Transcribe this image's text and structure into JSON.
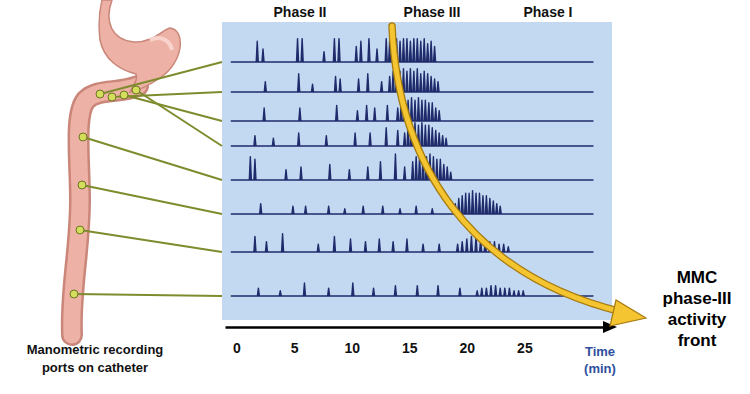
{
  "chart_data": {
    "type": "line",
    "annotations": {
      "phases": [
        "Phase II",
        "Phase III",
        "Phase I"
      ],
      "front": [
        "MMC",
        "phase-III",
        "activity",
        "front"
      ],
      "ports": [
        "Manometric recording",
        "ports on catheter"
      ]
    },
    "xlabel": [
      "Time",
      "(min)"
    ],
    "xlim": [
      -1,
      32
    ],
    "xticks": [
      0,
      5,
      10,
      15,
      20,
      25
    ],
    "ylim": [
      0,
      1
    ],
    "tick_labels": "x",
    "series": [
      {
        "color": "#1f2b6b",
        "x": [
          1.8,
          2.3,
          5.3,
          5.7,
          7.6,
          8.5,
          8.9,
          10.4,
          10.8,
          11.5,
          12.2,
          13.0,
          13.3,
          13.6,
          13.9,
          14.2,
          14.5,
          14.8,
          15.1,
          15.4,
          15.7,
          16.0,
          16.3,
          16.6,
          16.9,
          17.2
        ],
        "values": [
          0.8,
          0.5,
          0.9,
          0.9,
          0.4,
          0.9,
          0.9,
          0.6,
          0.8,
          0.9,
          0.5,
          0.9,
          0.8,
          0.9,
          0.9,
          0.8,
          0.9,
          0.9,
          0.8,
          0.9,
          0.9,
          0.8,
          0.9,
          0.7,
          0.8,
          0.6
        ]
      },
      {
        "color": "#1f2b6b",
        "x": [
          2.5,
          5.4,
          6.6,
          8.6,
          9.0,
          10.6,
          11.4,
          12.6,
          13.3,
          13.6,
          13.9,
          14.2,
          14.5,
          14.8,
          15.1,
          15.4,
          15.7,
          16.0,
          16.3,
          16.6,
          16.9,
          17.2,
          17.5
        ],
        "values": [
          0.4,
          0.7,
          0.3,
          0.6,
          0.5,
          0.5,
          0.7,
          0.4,
          0.6,
          0.8,
          0.7,
          0.8,
          0.9,
          0.8,
          0.9,
          0.8,
          0.9,
          0.7,
          0.8,
          0.7,
          0.6,
          0.5,
          0.4
        ]
      },
      {
        "color": "#1f2b6b",
        "x": [
          2.4,
          5.5,
          8.7,
          10.5,
          11.3,
          12.0,
          13.1,
          14.0,
          14.3,
          14.6,
          14.9,
          15.2,
          15.5,
          15.8,
          16.1,
          16.4,
          16.7,
          17.0,
          17.3,
          17.6
        ],
        "values": [
          0.5,
          0.5,
          0.6,
          0.4,
          0.6,
          0.5,
          0.6,
          0.5,
          0.7,
          0.8,
          0.8,
          0.9,
          0.8,
          0.9,
          0.8,
          0.8,
          0.7,
          0.7,
          0.5,
          0.4
        ]
      },
      {
        "color": "#1f2b6b",
        "x": [
          1.6,
          3.2,
          5.4,
          7.8,
          10.3,
          11.6,
          13.0,
          14.0,
          14.6,
          14.9,
          15.2,
          15.5,
          15.8,
          16.1,
          16.4,
          16.7,
          17.0,
          17.3,
          17.6,
          17.9,
          18.2
        ],
        "values": [
          0.4,
          0.3,
          0.5,
          0.4,
          0.5,
          0.5,
          0.7,
          0.6,
          0.5,
          0.8,
          0.8,
          0.9,
          0.8,
          0.9,
          0.8,
          0.8,
          0.7,
          0.6,
          0.5,
          0.4,
          0.3
        ]
      },
      {
        "color": "#1f2b6b",
        "x": [
          1.2,
          1.6,
          4.3,
          5.6,
          8.1,
          9.8,
          11.4,
          12.5,
          13.8,
          14.6,
          15.3,
          15.6,
          15.9,
          16.2,
          16.5,
          16.8,
          17.1,
          17.4,
          17.7,
          18.0,
          18.3,
          18.6
        ],
        "values": [
          0.9,
          0.8,
          0.4,
          0.5,
          0.6,
          0.4,
          0.5,
          0.7,
          1.0,
          0.5,
          0.7,
          0.9,
          0.9,
          1.0,
          0.9,
          1.0,
          0.9,
          0.8,
          0.8,
          0.6,
          0.5,
          0.3
        ]
      },
      {
        "color": "#1f2b6b",
        "x": [
          2.1,
          4.9,
          6.0,
          8.0,
          9.4,
          11.0,
          12.7,
          14.2,
          15.6,
          17.0,
          19.0,
          19.3,
          19.6,
          19.9,
          20.2,
          20.5,
          20.8,
          21.1,
          21.4,
          21.7,
          22.0,
          22.3,
          22.6,
          22.9
        ],
        "values": [
          0.4,
          0.3,
          0.3,
          0.3,
          0.2,
          0.3,
          0.3,
          0.2,
          0.3,
          0.2,
          0.4,
          0.6,
          0.7,
          0.8,
          0.8,
          0.9,
          0.8,
          0.8,
          0.7,
          0.7,
          0.6,
          0.5,
          0.4,
          0.3
        ]
      },
      {
        "color": "#1f2b6b",
        "x": [
          1.6,
          2.6,
          4.0,
          7.1,
          8.5,
          9.9,
          11.2,
          12.4,
          13.6,
          14.8,
          16.2,
          17.6,
          19.2,
          19.6,
          20.0,
          20.4,
          20.8,
          21.2,
          21.6,
          22.0,
          22.4,
          22.8,
          23.2,
          23.6
        ],
        "values": [
          0.6,
          0.4,
          0.7,
          0.3,
          0.6,
          0.5,
          0.4,
          0.5,
          0.4,
          0.5,
          0.3,
          0.3,
          0.3,
          0.4,
          0.5,
          0.6,
          0.6,
          0.5,
          0.5,
          0.4,
          0.4,
          0.3,
          0.3,
          0.2
        ]
      },
      {
        "color": "#1f2b6b",
        "x": [
          1.9,
          3.8,
          5.9,
          8.0,
          10.1,
          11.9,
          13.8,
          15.7,
          17.5,
          19.4,
          20.9,
          21.3,
          21.7,
          22.1,
          22.5,
          22.9,
          23.3,
          23.7,
          24.1,
          24.5,
          24.9
        ],
        "values": [
          0.3,
          0.2,
          0.5,
          0.3,
          0.5,
          0.3,
          0.4,
          0.4,
          0.4,
          0.3,
          0.2,
          0.3,
          0.3,
          0.4,
          0.4,
          0.3,
          0.3,
          0.3,
          0.2,
          0.2,
          0.2
        ]
      }
    ]
  }
}
